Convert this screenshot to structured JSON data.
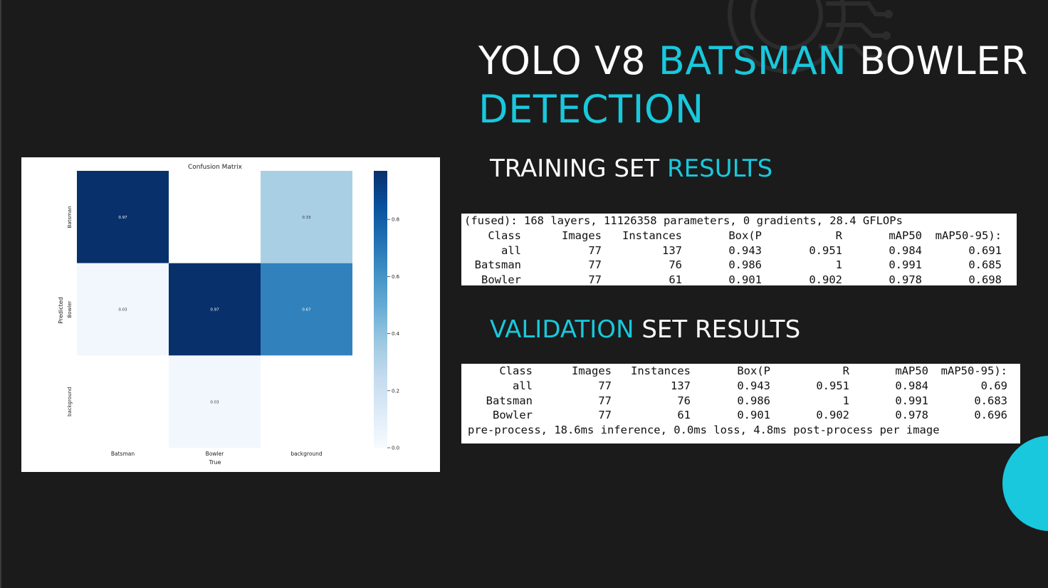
{
  "slide": {
    "title": {
      "part1": "YOLO V8",
      "part2": "BATSMAN",
      "part3": "BOWLER",
      "part4": "DETECTION"
    },
    "accent_color": "#19c8dc",
    "background_color": "#1b1b1b"
  },
  "training": {
    "heading_plain": "TRAINING SET",
    "heading_accent": "RESULTS",
    "summary_line": "(fused): 168 layers, 11126358 parameters, 0 gradients, 28.4 GFLOPs",
    "headers": [
      "Class",
      "Images",
      "Instances",
      "Box(P",
      "R",
      "mAP50",
      "mAP50-95):"
    ],
    "rows": [
      [
        "all",
        "77",
        "137",
        "0.943",
        "0.951",
        "0.984",
        "0.691"
      ],
      [
        "Batsman",
        "77",
        "76",
        "0.986",
        "1",
        "0.991",
        "0.685"
      ],
      [
        "Bowler",
        "77",
        "61",
        "0.901",
        "0.902",
        "0.978",
        "0.698"
      ]
    ]
  },
  "validation": {
    "heading_accent": "VALIDATION",
    "heading_plain": "SET RESULTS",
    "headers": [
      "Class",
      "Images",
      "Instances",
      "Box(P",
      "R",
      "mAP50",
      "mAP50-95):"
    ],
    "rows": [
      [
        "all",
        "77",
        "137",
        "0.943",
        "0.951",
        "0.984",
        "0.69"
      ],
      [
        "Batsman",
        "77",
        "76",
        "0.986",
        "1",
        "0.991",
        "0.683"
      ],
      [
        "Bowler",
        "77",
        "61",
        "0.901",
        "0.902",
        "0.978",
        "0.696"
      ]
    ],
    "timing_line": "pre-process, 18.6ms inference, 0.0ms loss, 4.8ms post-process per image"
  },
  "chart_data": {
    "type": "heatmap",
    "title": "Confusion Matrix",
    "xlabel": "True",
    "ylabel": "Predicted",
    "x_categories": [
      "Batsman",
      "Bowler",
      "background"
    ],
    "y_categories": [
      "Batsman",
      "Bowler",
      "background"
    ],
    "values": [
      [
        0.97,
        null,
        0.33
      ],
      [
        0.03,
        0.97,
        0.67
      ],
      [
        null,
        0.03,
        null
      ]
    ],
    "labels": [
      [
        "0.97",
        "",
        "0.33"
      ],
      [
        "0.03",
        "0.97",
        "0.67"
      ],
      [
        "",
        "0.03",
        ""
      ]
    ],
    "colorbar": {
      "ticks": [
        0.0,
        0.2,
        0.4,
        0.6,
        0.8
      ],
      "tick_labels": [
        "0.0",
        "0.2",
        "0.4",
        "0.6",
        "0.8"
      ],
      "range": [
        0,
        0.97
      ]
    },
    "colormap": "Blues",
    "grid": false
  }
}
